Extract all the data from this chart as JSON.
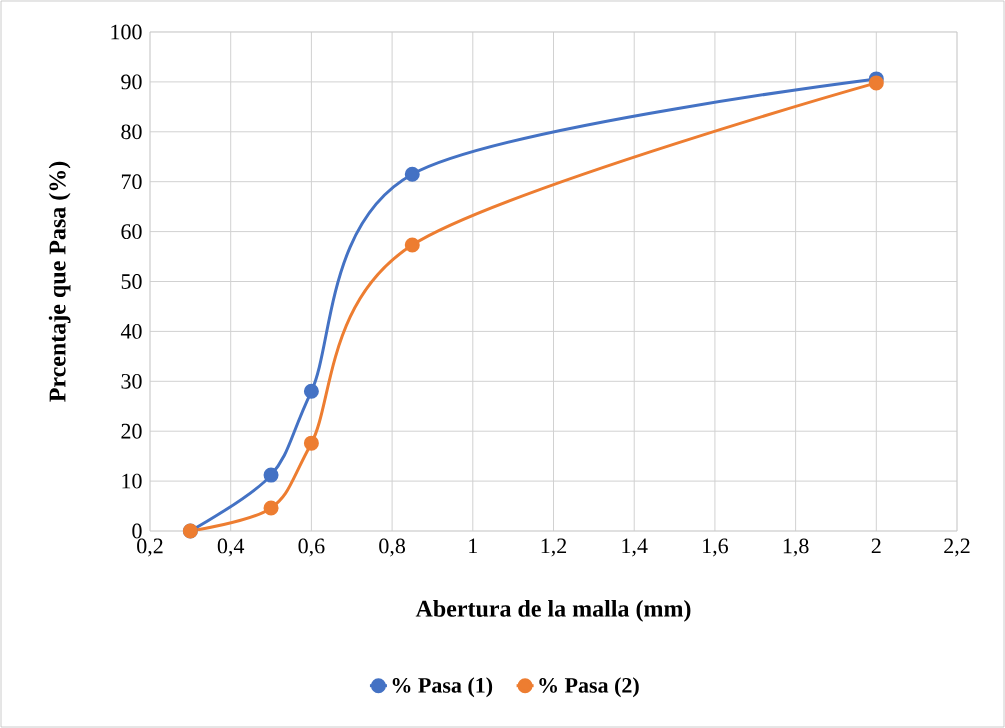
{
  "chart_data": {
    "type": "line",
    "xlabel": "Abertura de la malla (mm)",
    "ylabel": "Prcentaje que Pasa  (%)",
    "series": [
      {
        "name": "% Pasa (1)",
        "color": "#4472c4",
        "x": [
          0.3,
          0.5,
          0.6,
          0.85,
          2
        ],
        "values": [
          0,
          11.2,
          28.0,
          71.5,
          90.6
        ]
      },
      {
        "name": "% Pasa (2)",
        "color": "#ed7d31",
        "x": [
          0.3,
          0.5,
          0.6,
          0.85,
          2
        ],
        "values": [
          0,
          4.6,
          17.6,
          57.3,
          89.8
        ]
      }
    ],
    "xlim": [
      0.2,
      2.2
    ],
    "xticks": [
      {
        "value": 0.2,
        "label": "0,2"
      },
      {
        "value": 0.4,
        "label": "0,4"
      },
      {
        "value": 0.6,
        "label": "0,6"
      },
      {
        "value": 0.8,
        "label": "0,8"
      },
      1,
      {
        "value": 1.2,
        "label": "1,2"
      },
      {
        "value": 1.4,
        "label": "1,4"
      },
      {
        "value": 1.6,
        "label": "1,6"
      },
      {
        "value": 1.8,
        "label": "1,8"
      },
      2,
      {
        "value": 2.2,
        "label": "2,2"
      }
    ],
    "ylim": [
      0,
      100
    ],
    "yticks": [
      0,
      10,
      20,
      30,
      40,
      50,
      60,
      70,
      80,
      90,
      100
    ],
    "grid": true,
    "legend": "bottom",
    "marker": "circle",
    "line_style": "solid"
  }
}
